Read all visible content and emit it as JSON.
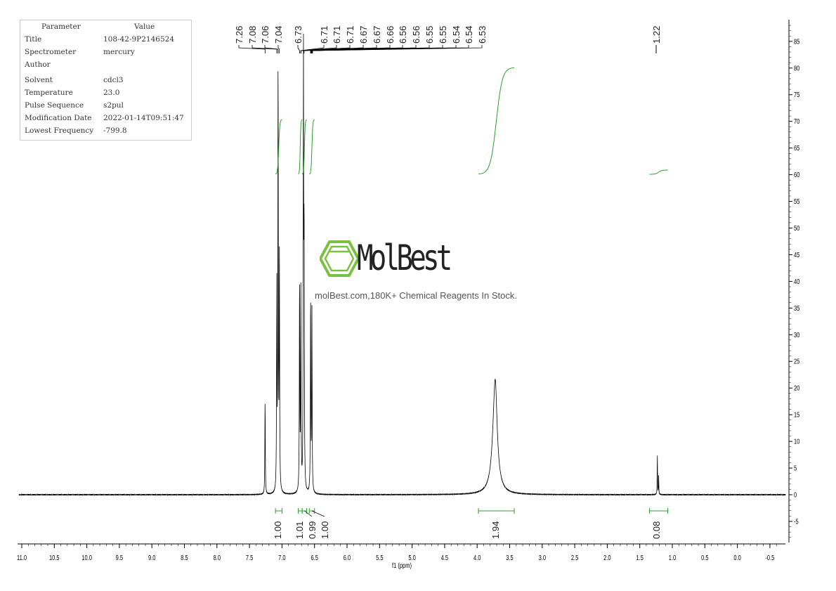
{
  "parameters": {
    "header": [
      "Parameter",
      "Value"
    ],
    "rows": [
      [
        "Title",
        "108-42-9P2146524"
      ],
      [
        "Spectrometer",
        "mercury"
      ],
      [
        "Author",
        ""
      ],
      [
        "Solvent",
        "cdcl3"
      ],
      [
        "Temperature",
        "23.0"
      ],
      [
        "Pulse Sequence",
        "s2pul"
      ],
      [
        "Modification Date",
        "2022-01-14T09:51:47"
      ],
      [
        "Lowest Frequency",
        "-799.8"
      ]
    ]
  },
  "watermark": {
    "brand": "MolBest",
    "tagline": "molBest.com,180K+ Chemical Reagents In Stock.",
    "color": "#7ac143"
  },
  "chart_data": {
    "type": "line",
    "xlabel": "f1 (ppm)",
    "xlim": [
      11.0,
      -0.6
    ],
    "ylim": [
      -9,
      89
    ],
    "x_ticks": [
      "11.0",
      "10.5",
      "10.0",
      "9.5",
      "9.0",
      "8.5",
      "8.0",
      "7.5",
      "7.0",
      "6.5",
      "6.0",
      "5.5",
      "5.0",
      "4.5",
      "4.0",
      "3.5",
      "3.0",
      "2.5",
      "2.0",
      "1.5",
      "1.0",
      "0.5",
      "0.0",
      "-0.5"
    ],
    "y_ticks": [
      "85",
      "80",
      "75",
      "70",
      "65",
      "60",
      "55",
      "50",
      "45",
      "40",
      "35",
      "30",
      "25",
      "20",
      "15",
      "10",
      "5",
      "0",
      "-5"
    ],
    "grid": false,
    "line_color": "#000000",
    "integral_color": "#2ca02c",
    "peaks": [
      {
        "ppm": 7.26,
        "height": 17.7,
        "width": 0.004
      },
      {
        "ppm": 7.08,
        "height": 38,
        "width": 0.004
      },
      {
        "ppm": 7.06,
        "height": 81,
        "width": 0.004
      },
      {
        "ppm": 7.04,
        "height": 44,
        "width": 0.004
      },
      {
        "ppm": 6.73,
        "height": 40,
        "width": 0.004
      },
      {
        "ppm": 6.71,
        "height": 37,
        "width": 0.004
      },
      {
        "ppm": 6.67,
        "height": 80,
        "width": 0.004
      },
      {
        "ppm": 6.66,
        "height": 45,
        "width": 0.004
      },
      {
        "ppm": 6.56,
        "height": 37,
        "width": 0.004
      },
      {
        "ppm": 6.54,
        "height": 34,
        "width": 0.004
      },
      {
        "ppm": 3.73,
        "height": 12,
        "width": 0.05
      },
      {
        "ppm": 3.72,
        "height": 10,
        "width": 0.03
      },
      {
        "ppm": 1.23,
        "height": 7.5,
        "width": 0.003
      },
      {
        "ppm": 1.21,
        "height": 3.5,
        "width": 0.003
      }
    ],
    "peak_labels": [
      "7.26",
      "7.08",
      "7.06",
      "7.04",
      "6.73",
      "6.71",
      "6.71",
      "6.71",
      "6.67",
      "6.67",
      "6.66",
      "6.56",
      "6.56",
      "6.55",
      "6.55",
      "6.54",
      "6.54",
      "6.53",
      "1.22"
    ],
    "integrals": [
      {
        "from": 7.1,
        "to": 7.0,
        "value": "1.00"
      },
      {
        "from": 6.75,
        "to": 6.69,
        "value": "1.01"
      },
      {
        "from": 6.69,
        "to": 6.62,
        "value": "0.99"
      },
      {
        "from": 6.58,
        "to": 6.5,
        "value": "1.00"
      },
      {
        "from": 3.98,
        "to": 3.43,
        "value": "1.94"
      },
      {
        "from": 1.35,
        "to": 1.07,
        "value": "0.08"
      }
    ]
  }
}
